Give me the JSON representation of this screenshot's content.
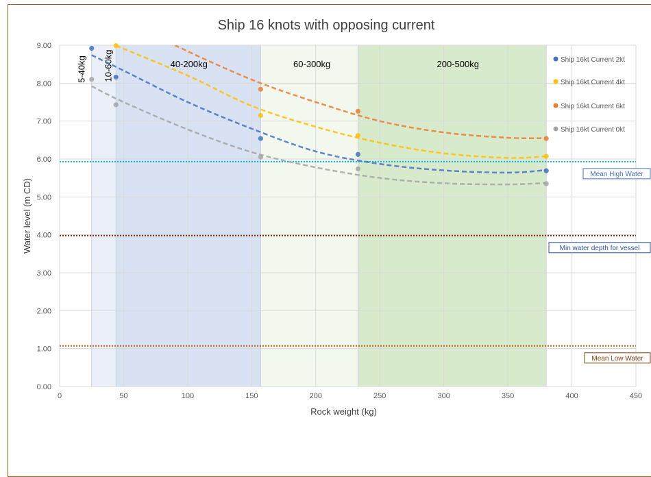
{
  "chart_data": {
    "type": "scatter",
    "title": "Ship 16 knots with opposing current",
    "xlabel": "Rock weight (kg)",
    "ylabel": "Water level (m CD)",
    "xlim": [
      0,
      450
    ],
    "ylim": [
      0,
      9
    ],
    "x_ticks": [
      "0",
      "50",
      "100",
      "150",
      "200",
      "250",
      "300",
      "350",
      "400",
      "450"
    ],
    "y_ticks": [
      "0.00",
      "1.00",
      "2.00",
      "3.00",
      "4.00",
      "5.00",
      "6.00",
      "7.00",
      "8.00",
      "9.00"
    ],
    "grid": true,
    "legend_position": "right",
    "series": [
      {
        "name": "Ship 16kt Current 2kt",
        "color": "#4472c4",
        "x": [
          25,
          44,
          157,
          233,
          380
        ],
        "y": [
          8.92,
          8.16,
          6.54,
          6.12,
          5.69
        ]
      },
      {
        "name": "Ship 16kt Current 4kt",
        "color": "#ffc000",
        "x": [
          44,
          157,
          233,
          380
        ],
        "y": [
          8.99,
          7.15,
          6.62,
          6.07
        ]
      },
      {
        "name": "Ship 16kt Current 6kt",
        "color": "#ed7d31",
        "x": [
          157,
          233,
          380
        ],
        "y": [
          7.84,
          7.26,
          6.54
        ]
      },
      {
        "name": "Ship 16kt Current 0kt",
        "color": "#a5a5a5",
        "x": [
          25,
          44,
          157,
          233,
          380
        ],
        "y": [
          8.1,
          7.43,
          6.05,
          5.74,
          5.35
        ]
      }
    ],
    "trendlines": [
      {
        "series": "Ship 16kt Current 2kt",
        "color": "#4472c4",
        "x": [
          25,
          50,
          100,
          150,
          200,
          250,
          300,
          350,
          380
        ],
        "y": [
          8.74,
          8.33,
          7.5,
          6.8,
          6.2,
          5.87,
          5.7,
          5.64,
          5.71
        ]
      },
      {
        "series": "Ship 16kt Current 4kt",
        "color": "#ffc000",
        "x": [
          44,
          100,
          150,
          200,
          250,
          300,
          350,
          380
        ],
        "y": [
          8.99,
          8.2,
          7.4,
          6.85,
          6.43,
          6.15,
          6.03,
          6.07
        ]
      },
      {
        "series": "Ship 16kt Current 6kt",
        "color": "#ed7d31",
        "x": [
          90,
          120,
          157,
          200,
          250,
          300,
          350,
          380
        ],
        "y": [
          9.0,
          8.53,
          8.0,
          7.5,
          7.0,
          6.7,
          6.56,
          6.55
        ]
      },
      {
        "series": "Ship 16kt Current 0kt",
        "color": "#a5a5a5",
        "x": [
          25,
          50,
          100,
          150,
          200,
          250,
          300,
          350,
          380
        ],
        "y": [
          7.92,
          7.5,
          6.78,
          6.18,
          5.78,
          5.5,
          5.36,
          5.33,
          5.37
        ]
      }
    ],
    "bands": [
      {
        "label": "5-40kg",
        "x0": 25,
        "x1": 44,
        "color": "#dae3f3",
        "opacity": 0.55,
        "vertical": true
      },
      {
        "label": "10-60kg",
        "x0": 44,
        "x1": 157,
        "color": "#b4c7e7",
        "opacity": 0.4,
        "vertical": true
      },
      {
        "label": "40-200kg",
        "x0": 44,
        "x1": 157,
        "color": "#b4c7e7",
        "opacity": 0.2,
        "vertical": false
      },
      {
        "label": "60-300kg",
        "x0": 157,
        "x1": 233,
        "color": "#e2f0d9",
        "opacity": 0.45,
        "vertical": false
      },
      {
        "label": "200-500kg",
        "x0": 233,
        "x1": 380,
        "color": "#a9d18e",
        "opacity": 0.45,
        "vertical": false
      }
    ],
    "reference_lines": [
      {
        "label": "Mean High Water",
        "y": 5.93,
        "color": "#00b0f0",
        "text_color": "#4472c4"
      },
      {
        "label": "Min water depth for vessel",
        "y": 3.98,
        "color": "#7f2704",
        "text_color": "#2f5597"
      },
      {
        "label": "Mean Low Water",
        "y": 1.07,
        "color": "#c55a11",
        "text_color": "#843c0c"
      }
    ]
  }
}
